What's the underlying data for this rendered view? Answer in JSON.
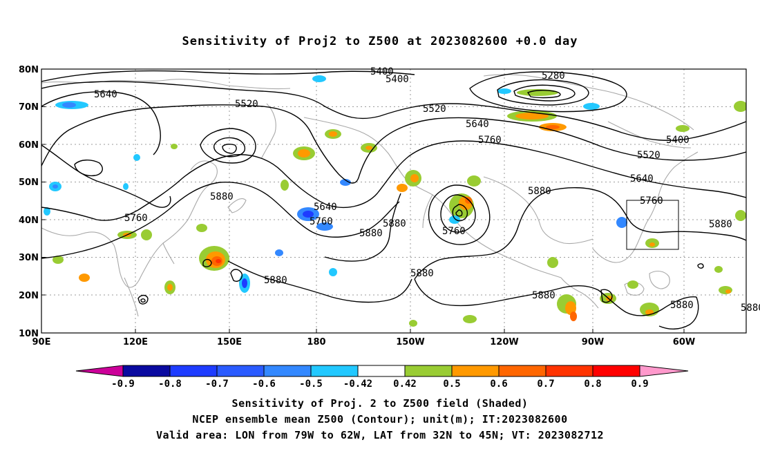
{
  "title": "Sensitivity of Proj2 to Z500 at 2023082600 +0.0 day",
  "lat_labels": [
    "80N",
    "70N",
    "60N",
    "50N",
    "40N",
    "30N",
    "20N",
    "10N"
  ],
  "lon_labels": [
    "90E",
    "120E",
    "150E",
    "180",
    "150W",
    "120W",
    "90W",
    "60W"
  ],
  "contour_labels": [
    "5400",
    "5400",
    "5280",
    "5640",
    "5520",
    "5520",
    "5640",
    "5760",
    "5400",
    "5520",
    "5640",
    "5760",
    "5880",
    "5880",
    "5640",
    "5760",
    "5880",
    "5880",
    "5760",
    "5880",
    "5880",
    "5880",
    "5880",
    "5880",
    "5880",
    "5760"
  ],
  "colorbar": {
    "labels": [
      "-0.9",
      "-0.8",
      "-0.7",
      "-0.6",
      "-0.5",
      "-0.42",
      "0.42",
      "0.5",
      "0.6",
      "0.7",
      "0.8",
      "0.9"
    ],
    "colors": [
      "#0a0aa0",
      "#1e3cff",
      "#2a5bff",
      "#3388ff",
      "#22c8ff",
      "#ffffff",
      "#99cc33",
      "#ff9900",
      "#ff6600",
      "#ff3300",
      "#ff0000"
    ],
    "low_color": "#cc0099",
    "high_color": "#ff99cc"
  },
  "captions": [
    "Sensitivity of Proj. 2 to Z500 field (Shaded)",
    "NCEP ensemble mean Z500 (Contour); unit(m); IT:2023082600",
    "Valid area: LON from 79W to 62W, LAT from 32N to 45N; VT: 2023082712"
  ]
}
